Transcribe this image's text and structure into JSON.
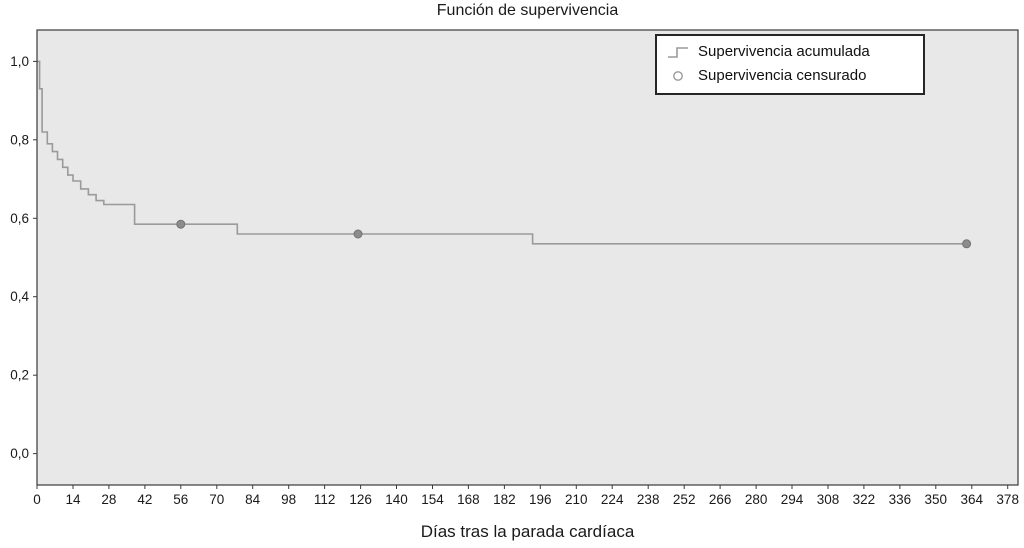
{
  "chart_data": {
    "type": "line",
    "chart_kind": "kaplan-meier-step",
    "title": "Función de supervivencia",
    "xlabel": "Días tras la parada cardíaca",
    "ylabel": "",
    "xlim": [
      0,
      382
    ],
    "ylim": [
      -0.08,
      1.08
    ],
    "grid": false,
    "x_ticks": [
      0,
      14,
      28,
      42,
      56,
      70,
      84,
      98,
      112,
      126,
      140,
      154,
      168,
      182,
      196,
      210,
      224,
      238,
      252,
      266,
      280,
      294,
      308,
      322,
      336,
      350,
      364,
      378
    ],
    "y_ticks": [
      {
        "value": 0.0,
        "label": "0,0"
      },
      {
        "value": 0.2,
        "label": "0,2"
      },
      {
        "value": 0.4,
        "label": "0,4"
      },
      {
        "value": 0.6,
        "label": "0,6"
      },
      {
        "value": 0.8,
        "label": "0,8"
      },
      {
        "value": 1.0,
        "label": "1,0"
      }
    ],
    "legend": {
      "position": "top-right",
      "items": [
        {
          "label": "Supervivencia acumulada",
          "marker": "step-line"
        },
        {
          "label": "Supervivencia censurado",
          "marker": "open-circle"
        }
      ]
    },
    "series": [
      {
        "name": "Supervivencia acumulada",
        "type": "step",
        "points": [
          [
            0,
            1.0
          ],
          [
            1,
            0.93
          ],
          [
            2,
            0.82
          ],
          [
            4,
            0.79
          ],
          [
            6,
            0.77
          ],
          [
            8,
            0.75
          ],
          [
            10,
            0.73
          ],
          [
            12,
            0.71
          ],
          [
            14,
            0.695
          ],
          [
            17,
            0.675
          ],
          [
            20,
            0.66
          ],
          [
            23,
            0.645
          ],
          [
            26,
            0.635
          ],
          [
            38,
            0.585
          ],
          [
            78,
            0.56
          ],
          [
            193,
            0.535
          ],
          [
            363,
            0.535
          ]
        ]
      },
      {
        "name": "Supervivencia censurado",
        "type": "censored-markers",
        "points": [
          [
            56,
            0.585
          ],
          [
            125,
            0.56
          ],
          [
            362,
            0.535
          ]
        ]
      }
    ],
    "colors": {
      "plot_background": "#e8e8e8",
      "curve": "#9a9a9a",
      "censored_fill": "#8c8c8c",
      "censored_stroke": "#737373",
      "axis": "#3a3a3a",
      "text": "#1a1a1a",
      "legend_border": "#262626",
      "legend_background": "#ffffff"
    }
  }
}
